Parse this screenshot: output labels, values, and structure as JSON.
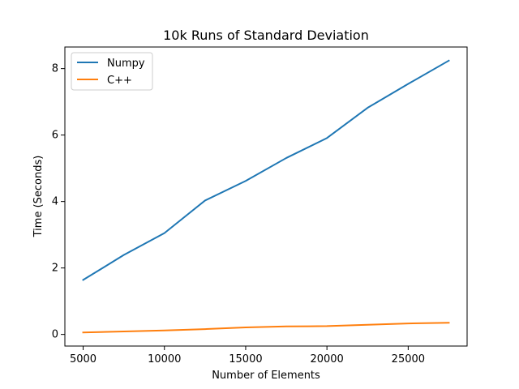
{
  "chart_data": {
    "type": "line",
    "title": "10k Runs of Standard Deviation",
    "xlabel": "Number of Elements",
    "ylabel": "Time (Seconds)",
    "x": [
      5000,
      7500,
      10000,
      12500,
      15000,
      17500,
      20000,
      22500,
      25000,
      27500
    ],
    "xlim": [
      3875,
      28625
    ],
    "ylim": [
      -0.35,
      8.65
    ],
    "xticks": [
      5000,
      10000,
      15000,
      20000,
      25000
    ],
    "yticks": [
      0,
      2,
      4,
      6,
      8
    ],
    "grid": false,
    "legend_position": "top-left",
    "series": [
      {
        "name": "Numpy",
        "color": "#1f77b4",
        "values": [
          1.64,
          2.39,
          3.05,
          4.03,
          4.62,
          5.31,
          5.91,
          6.82,
          7.54,
          8.24
        ]
      },
      {
        "name": "C++",
        "color": "#ff7f0e",
        "values": [
          0.06,
          0.09,
          0.12,
          0.16,
          0.21,
          0.24,
          0.25,
          0.29,
          0.33,
          0.35
        ]
      }
    ]
  }
}
